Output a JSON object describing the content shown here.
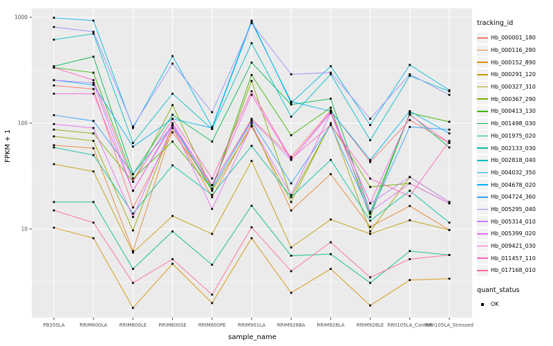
{
  "figure": {
    "background": "#FFFFFF",
    "panel_background": "#EBEBEB",
    "gridline_color": "#FFFFFF",
    "tick_text_color": "#4D4D4D"
  },
  "axes": {
    "y": {
      "title": "FPKM + 1",
      "scale": "log10",
      "tick_values": [
        10,
        100,
        1000
      ],
      "tick_labels": [
        "10",
        "100",
        "1000"
      ],
      "minor_gridlines": [
        3.1623,
        31.623,
        316.23
      ]
    },
    "x": {
      "title": "sample_name"
    }
  },
  "legend": {
    "tracking_title": "tracking_id",
    "quant_title": "quant_status",
    "quant_items": [
      {
        "label": "OK",
        "marker": "black-point"
      }
    ],
    "key_background": "#F2F2F2",
    "position": "right"
  },
  "chart_data": {
    "type": "line",
    "title": "",
    "xlabel": "sample_name",
    "ylabel": "FPKM + 1",
    "y_scale": "log10",
    "ylim": [
      1.4,
      1215
    ],
    "grid": "white major and minor gridlines on gray panel",
    "legend_position": "right",
    "point_marker": {
      "shape": "square",
      "color": "#000000",
      "meaning": "quant_status = OK"
    },
    "categories": [
      "PB350LA",
      "RRIM600LA",
      "RRIM600LE",
      "RRIM600SE",
      "RRIM600PE",
      "RRIM901LA",
      "RRIM928BA",
      "RRIM928LA",
      "RRIM928LE",
      "RRII105LA_Control",
      "RRII105LA_Stressed"
    ],
    "series": [
      {
        "name": "Hb_000001_180",
        "color": "#F8766D",
        "values": [
          227,
          210,
          16,
          82,
          26,
          110,
          48,
          132,
          43,
          107,
          65
        ]
      },
      {
        "name": "Hb_000116_280",
        "color": "#EA8331",
        "values": [
          62,
          58,
          6.2,
          90,
          20,
          100,
          15,
          33,
          10.5,
          16.5,
          9.8
        ]
      },
      {
        "name": "Hb_000152_890",
        "color": "#D89000",
        "values": [
          10.3,
          8.2,
          1.8,
          4.7,
          2.0,
          8.2,
          2.5,
          4.2,
          1.9,
          3.3,
          3.4
        ]
      },
      {
        "name": "Hb_000291_120",
        "color": "#C09B00",
        "values": [
          41,
          35,
          6.0,
          13.3,
          9.0,
          44,
          6.7,
          12.3,
          9.0,
          12.1,
          9.8
        ]
      },
      {
        "name": "Hb_000327_310",
        "color": "#A3A500",
        "values": [
          75,
          68,
          9.7,
          95,
          23,
          93,
          18,
          100,
          9.5,
          31,
          18
        ]
      },
      {
        "name": "Hb_000367_290",
        "color": "#7CAE00",
        "values": [
          87,
          80,
          28,
          148,
          24,
          250,
          20,
          98,
          25,
          27,
          17.5
        ]
      },
      {
        "name": "Hb_000413_130",
        "color": "#39B600",
        "values": [
          335,
          300,
          30,
          67,
          24,
          285,
          77,
          140,
          13,
          125,
          103
        ]
      },
      {
        "name": "Hb_001498_030",
        "color": "#00BB4E",
        "values": [
          345,
          425,
          33,
          120,
          67,
          374,
          150,
          170,
          14.5,
          122,
          59
        ]
      },
      {
        "name": "Hb_001975_020",
        "color": "#00BF7D",
        "values": [
          18,
          18,
          4.2,
          9.5,
          4.6,
          16.6,
          5.6,
          5.8,
          3.1,
          6.2,
          5.7
        ]
      },
      {
        "name": "Hb_002133_030",
        "color": "#00C1A3",
        "values": [
          59,
          50,
          14,
          40,
          21,
          61,
          20,
          45,
          12,
          23,
          11.5
        ]
      },
      {
        "name": "Hb_002818_040",
        "color": "#00BFC4",
        "values": [
          615,
          700,
          65,
          190,
          88,
          570,
          115,
          290,
          69,
          280,
          200
        ]
      },
      {
        "name": "Hb_004032_350",
        "color": "#00BAE0",
        "values": [
          990,
          930,
          90,
          430,
          92,
          930,
          155,
          345,
          96,
          355,
          205
        ]
      },
      {
        "name": "Hb_004678_020",
        "color": "#00B0F6",
        "values": [
          255,
          230,
          60,
          110,
          90,
          900,
          160,
          130,
          45,
          130,
          80
        ]
      },
      {
        "name": "Hb_004724_360",
        "color": "#35A2FF",
        "values": [
          119,
          105,
          33,
          95,
          24,
          105,
          27,
          96,
          14,
          92,
          87
        ]
      },
      {
        "name": "Hb_005295_040",
        "color": "#9590FF",
        "values": [
          810,
          730,
          93,
          365,
          127,
          880,
          290,
          300,
          110,
          290,
          185
        ]
      },
      {
        "name": "Hb_005314_010",
        "color": "#C77CFF",
        "values": [
          255,
          240,
          23,
          96,
          26,
          107,
          45,
          125,
          17.5,
          31,
          18
        ]
      },
      {
        "name": "Hb_005399_020",
        "color": "#E76BF3",
        "values": [
          98,
          90,
          13,
          95,
          15.5,
          95,
          21,
          125,
          14.6,
          27,
          17.5
        ]
      },
      {
        "name": "Hb_009421_030",
        "color": "#FA62DB",
        "values": [
          190,
          190,
          23,
          100,
          26,
          185,
          45,
          128,
          17.5,
          120,
          65
        ]
      },
      {
        "name": "Hb_011457_110",
        "color": "#FF62BC",
        "values": [
          335,
          255,
          28,
          110,
          30,
          200,
          46,
          96,
          30,
          20.5,
          68
        ]
      },
      {
        "name": "Hb_017168_010",
        "color": "#FF6A98",
        "values": [
          15,
          11.5,
          3.1,
          5.2,
          2.4,
          10.4,
          4.0,
          7.5,
          3.5,
          5.2,
          5.7
        ]
      }
    ]
  }
}
